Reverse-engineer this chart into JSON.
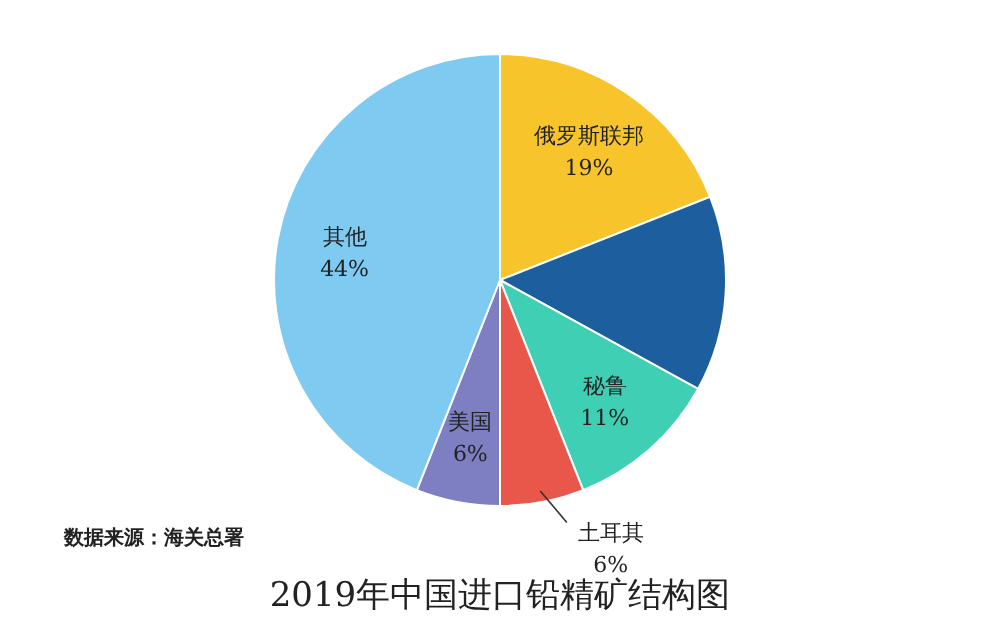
{
  "chart_data": {
    "type": "pie",
    "title": "2019年中国进口铅精矿结构图",
    "categories": [
      "俄罗斯联邦",
      null,
      "秘鲁",
      "土耳其",
      "美国",
      "其他"
    ],
    "values": [
      19,
      14,
      11,
      6,
      6,
      44
    ],
    "value_labels": [
      "19%",
      null,
      "11%",
      "6%",
      "6%",
      "44%"
    ],
    "colors": [
      "#f7c52b",
      "#1d5e9e",
      "#3fcfb4",
      "#e9574b",
      "#7d7fc2",
      "#7fcaf0"
    ],
    "annotations": [
      "数据来源：海关总署"
    ]
  }
}
